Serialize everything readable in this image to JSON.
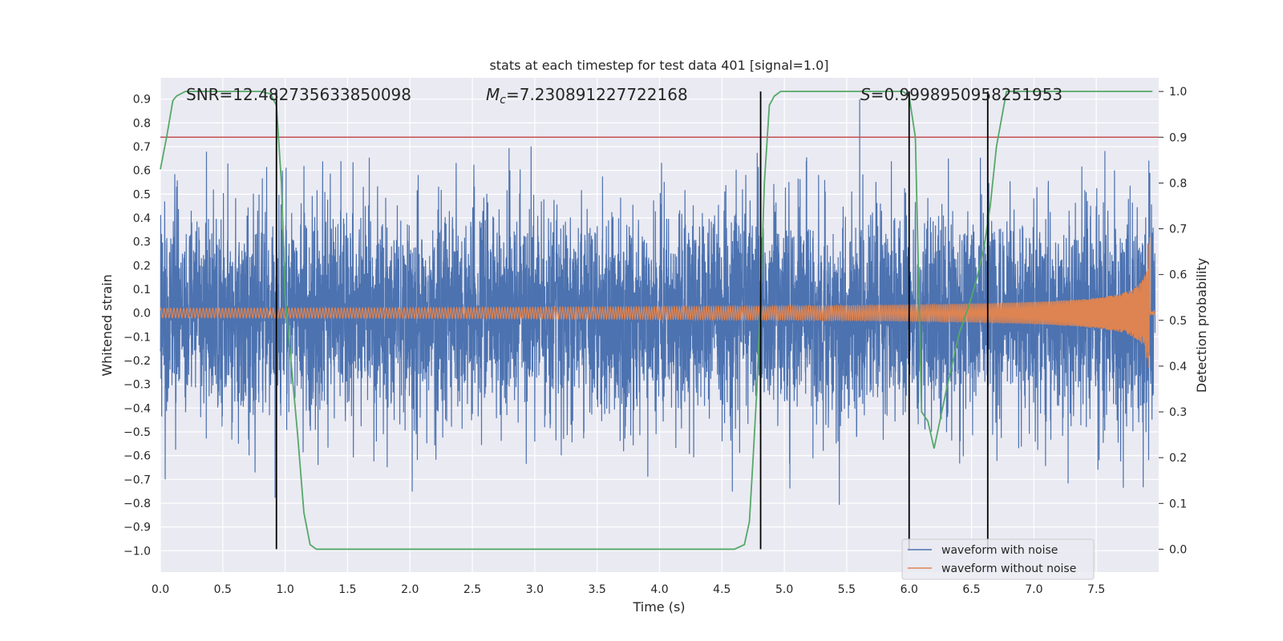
{
  "chart_data": {
    "type": "line",
    "title": "stats at each timestep for test data 401 [signal=1.0]",
    "xlabel": "Time (s)",
    "ylabel_left": "Whitened strain",
    "ylabel_right": "Detection probability",
    "xlim": [
      0.0,
      8.0
    ],
    "ylim_left": [
      -1.09,
      0.99
    ],
    "ylim_right": [
      -0.05,
      1.03
    ],
    "x_ticks": [
      "0.0",
      "0.5",
      "1.0",
      "1.5",
      "2.0",
      "2.5",
      "3.0",
      "3.5",
      "4.0",
      "4.5",
      "5.0",
      "5.5",
      "6.0",
      "6.5",
      "7.0",
      "7.5"
    ],
    "y_ticks_left": [
      "−1.0",
      "−0.9",
      "−0.8",
      "−0.7",
      "−0.6",
      "−0.5",
      "−0.4",
      "−0.3",
      "−0.2",
      "−0.1",
      "0.0",
      "0.1",
      "0.2",
      "0.3",
      "0.4",
      "0.5",
      "0.6",
      "0.7",
      "0.8",
      "0.9"
    ],
    "y_ticks_right": [
      "0.0",
      "0.1",
      "0.2",
      "0.3",
      "0.4",
      "0.5",
      "0.6",
      "0.7",
      "0.8",
      "0.9",
      "1.0"
    ],
    "grid": true,
    "legend_position": "lower-right",
    "annotations": {
      "snr": "SNR=12.482735633850098",
      "mc": "=7.230891227722168",
      "mc_symbol": "M",
      "mc_sub": "c",
      "s": "=0.9998950958251953",
      "s_symbol": "S"
    },
    "threshold": {
      "value_right": 0.9,
      "color": "#c44e52"
    },
    "vertical_lines_x": [
      0.93,
      4.81,
      6.0,
      6.63
    ],
    "series": [
      {
        "name": "waveform with noise",
        "color": "#4c72b0",
        "axis": "left",
        "description_envelope": {
          "typical_abs": 0.35,
          "peak_abs": 0.9
        }
      },
      {
        "name": "waveform without noise",
        "color": "#dd8452",
        "axis": "left",
        "chirp": {
          "start_amp": 0.02,
          "end_amp": 0.33,
          "merger_time": 7.93
        }
      },
      {
        "name": "detection probability",
        "color": "#55a868",
        "axis": "right",
        "x": [
          0.0,
          0.05,
          0.1,
          0.13,
          0.2,
          0.5,
          0.8,
          0.88,
          0.93,
          0.97,
          1.0,
          1.05,
          1.1,
          1.15,
          1.2,
          1.25,
          1.5,
          2.0,
          2.5,
          3.0,
          3.5,
          4.0,
          4.5,
          4.6,
          4.68,
          4.72,
          4.75,
          4.78,
          4.81,
          4.84,
          4.88,
          4.92,
          4.97,
          5.5,
          5.9,
          5.95,
          6.0,
          6.05,
          6.1,
          6.15,
          6.2,
          6.3,
          6.4,
          6.5,
          6.55,
          6.6,
          6.65,
          6.7,
          6.78,
          7.0,
          7.5,
          7.95
        ],
        "values": [
          0.83,
          0.9,
          0.98,
          0.99,
          1.0,
          1.0,
          1.0,
          0.995,
          0.97,
          0.8,
          0.55,
          0.4,
          0.25,
          0.08,
          0.01,
          0.0,
          0.0,
          0.0,
          0.0,
          0.0,
          0.0,
          0.0,
          0.0,
          0.0,
          0.01,
          0.06,
          0.2,
          0.35,
          0.55,
          0.8,
          0.97,
          0.99,
          1.0,
          1.0,
          1.0,
          1.0,
          0.99,
          0.9,
          0.3,
          0.28,
          0.22,
          0.35,
          0.47,
          0.55,
          0.6,
          0.66,
          0.75,
          0.88,
          1.0,
          1.0,
          1.0,
          1.0
        ]
      }
    ]
  }
}
